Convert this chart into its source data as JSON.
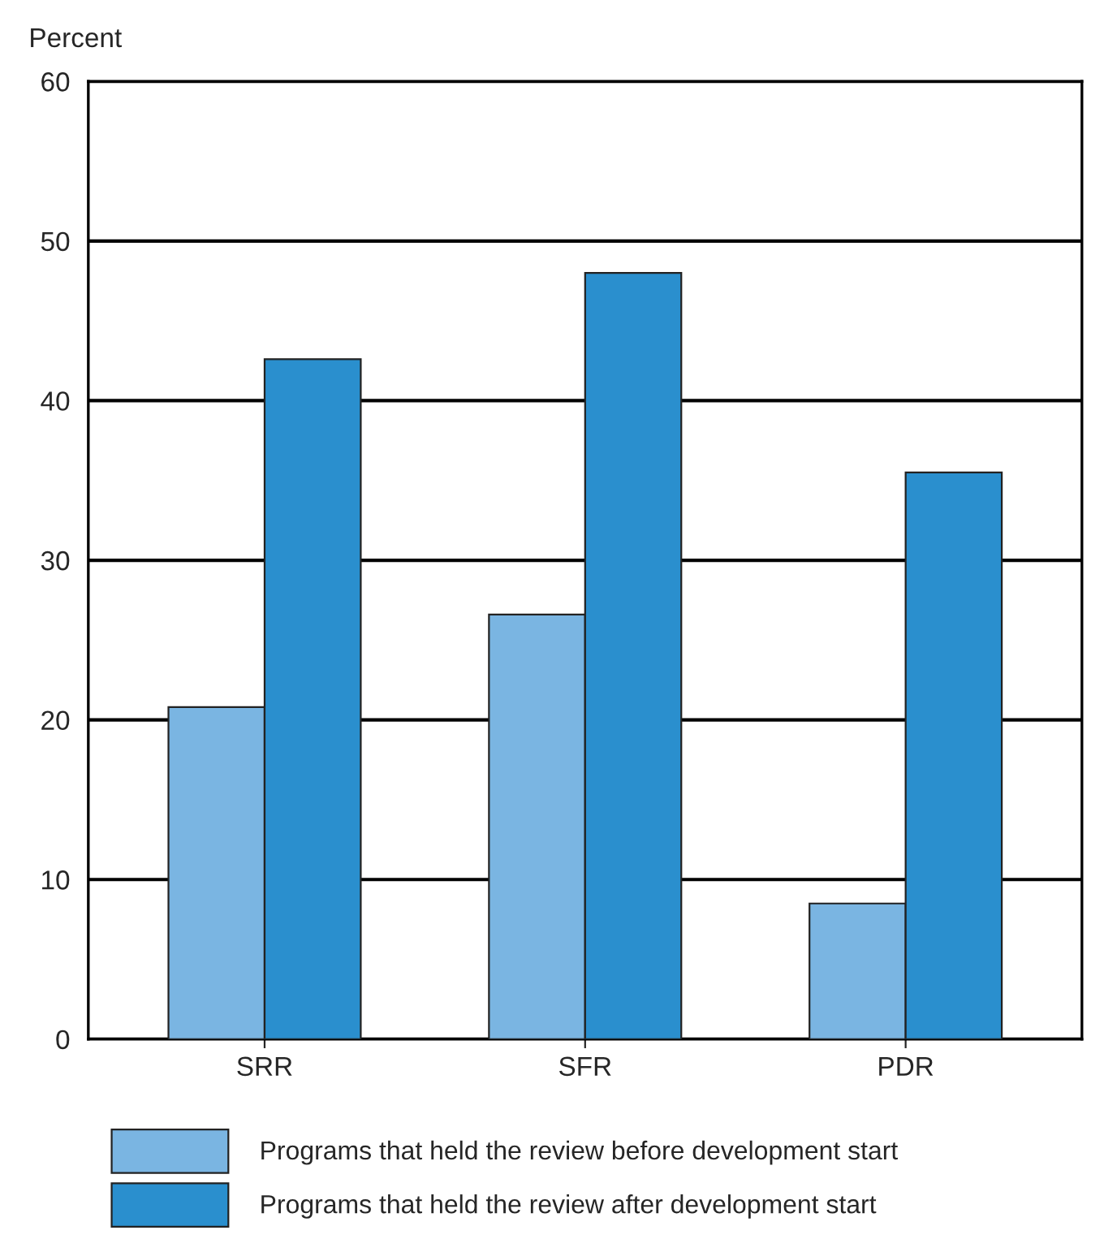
{
  "chart_data": {
    "type": "bar",
    "ylabel": "Percent",
    "categories": [
      "SRR",
      "SFR",
      "PDR"
    ],
    "series": [
      {
        "name": "Programs that held the review before development start",
        "color": "#7ab5e2",
        "values": [
          20.8,
          26.6,
          8.5
        ]
      },
      {
        "name": "Programs that held the review after development start",
        "color": "#2a8fce",
        "values": [
          42.6,
          48.0,
          35.5
        ]
      }
    ],
    "ylim": [
      0,
      60
    ],
    "yticks": [
      0,
      10,
      20,
      30,
      40,
      50,
      60
    ],
    "grid": "y",
    "legend": "bottom"
  }
}
